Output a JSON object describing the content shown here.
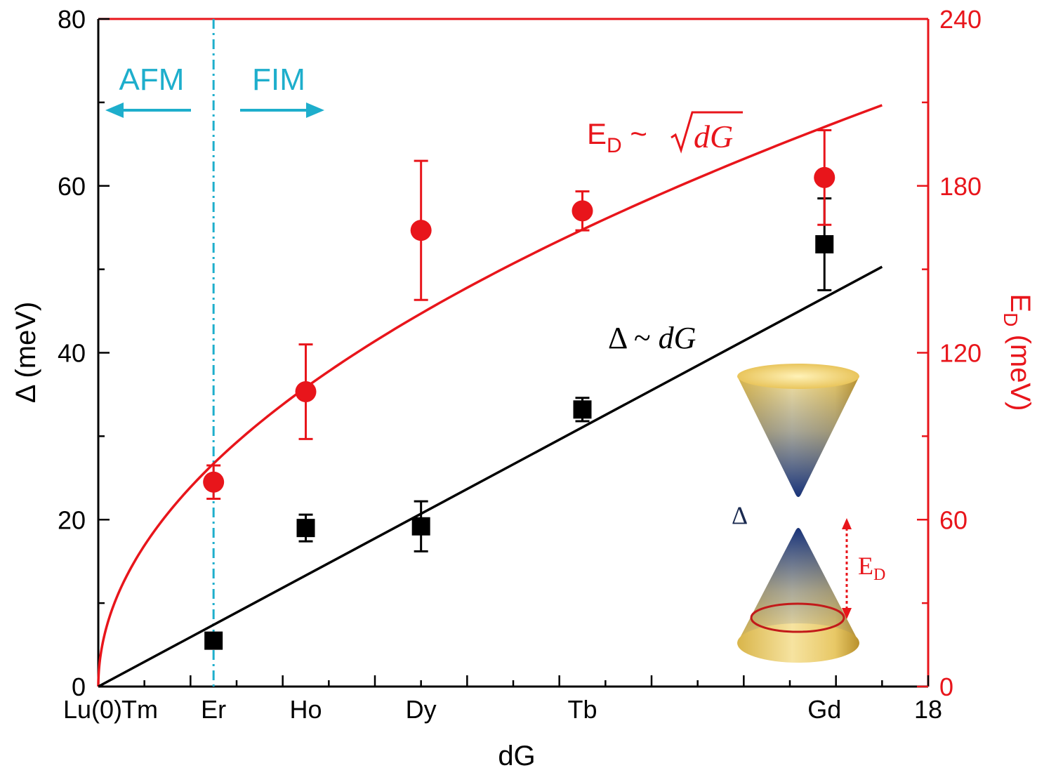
{
  "chart_data": {
    "type": "scatter",
    "xlabel": "dG",
    "ylabel_left": "Δ (meV)",
    "ylabel_right_main": "E",
    "ylabel_right_sub": "D",
    "ylabel_right_unit": " (meV)",
    "xlim": [
      0,
      18
    ],
    "ylim_left": [
      0,
      80
    ],
    "ylim_right": [
      0,
      240
    ],
    "x_tick_labels": [
      {
        "x": 0,
        "label": "Lu(0)"
      },
      {
        "x": 1,
        "label": "Tm"
      },
      {
        "x": 2.5,
        "label": "Er"
      },
      {
        "x": 4.5,
        "label": "Ho"
      },
      {
        "x": 7,
        "label": "Dy"
      },
      {
        "x": 10.5,
        "label": "Tb"
      },
      {
        "x": 15.75,
        "label": "Gd"
      },
      {
        "x": 18,
        "label": "18"
      }
    ],
    "y_left_ticks": [
      "0",
      "20",
      "40",
      "60",
      "80"
    ],
    "y_right_ticks": [
      "0",
      "60",
      "120",
      "180",
      "240"
    ],
    "series": [
      {
        "name": "Δ",
        "axis": "left",
        "color": "#000000",
        "marker": "square",
        "points": [
          {
            "x": 2.5,
            "y": 5.5,
            "err": 0
          },
          {
            "x": 4.5,
            "y": 19.0,
            "err": 1.6
          },
          {
            "x": 7.0,
            "y": 19.2,
            "err": 3.0
          },
          {
            "x": 10.5,
            "y": 33.2,
            "err": 1.4
          },
          {
            "x": 15.75,
            "y": 53.0,
            "err": 5.5
          }
        ]
      },
      {
        "name": "E_D",
        "axis": "right",
        "color": "#e8151b",
        "marker": "circle",
        "points": [
          {
            "x": 2.5,
            "y": 73.5,
            "err": 6
          },
          {
            "x": 4.5,
            "y": 106,
            "err": 17
          },
          {
            "x": 7.0,
            "y": 164,
            "err": 25
          },
          {
            "x": 10.5,
            "y": 171,
            "err": 7
          },
          {
            "x": 15.75,
            "y": 183,
            "err": 17
          }
        ]
      }
    ],
    "fits": [
      {
        "name": "linear",
        "axis": "left",
        "color": "#000000",
        "x_end": 17,
        "y_end": 50.3
      },
      {
        "name": "sqrt",
        "axis": "right",
        "color": "#e8151b",
        "x_end": 17,
        "y_end": 209
      }
    ],
    "boundary": {
      "x": 2.5,
      "color": "#1eaecc"
    },
    "annotations": {
      "afm": "AFM",
      "fim": "FIM",
      "fit_red_main": "E",
      "fit_red_sub": "D",
      "fit_red_tilde": " ~ ",
      "fit_red_rad": "dG",
      "fit_black": "Δ ~ ",
      "fit_black_var": "dG",
      "inset_gap": "Δ",
      "inset_ed_main": "E",
      "inset_ed_sub": "D"
    },
    "colors": {
      "left_axis": "#000000",
      "right_axis": "#e8151b",
      "boundary": "#1eaecc"
    }
  }
}
